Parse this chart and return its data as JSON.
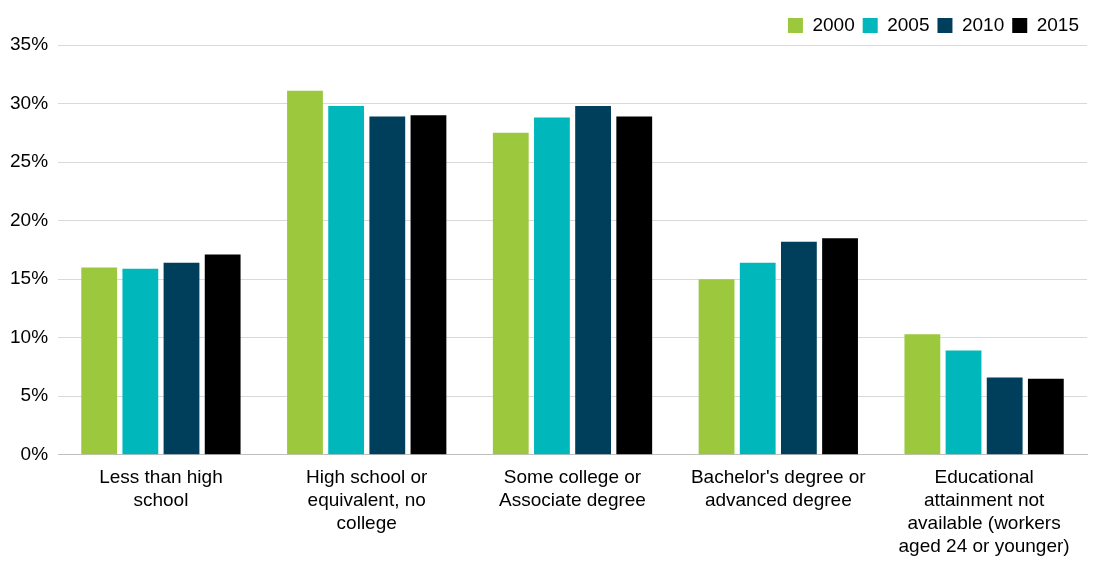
{
  "chart_data": {
    "type": "bar",
    "categories": [
      "Less than high school",
      "High school or equivalent, no college",
      "Some college or Associate degree",
      "Bachelor's degree or advanced degree",
      "Educational attainment not available (workers aged 24 or younger)"
    ],
    "series": [
      {
        "name": "2000",
        "color": "#9bc83c",
        "values": [
          16.0,
          31.1,
          27.5,
          15.0,
          10.3
        ]
      },
      {
        "name": "2005",
        "color": "#00b8bc",
        "values": [
          15.9,
          29.8,
          28.8,
          16.4,
          8.9
        ]
      },
      {
        "name": "2010",
        "color": "#003f5c",
        "values": [
          16.4,
          28.9,
          29.8,
          18.2,
          6.6
        ]
      },
      {
        "name": "2015",
        "color": "#000000",
        "values": [
          17.1,
          29.0,
          28.9,
          18.5,
          6.5
        ]
      }
    ],
    "ylim": [
      0,
      35
    ],
    "yticks": [
      {
        "value": 0,
        "label": "0%"
      },
      {
        "value": 5,
        "label": "5%"
      },
      {
        "value": 10,
        "label": "10%"
      },
      {
        "value": 15,
        "label": "15%"
      },
      {
        "value": 20,
        "label": "20%"
      },
      {
        "value": 25,
        "label": "25%"
      },
      {
        "value": 30,
        "label": "30%"
      },
      {
        "value": 35,
        "label": "35%"
      }
    ],
    "grid": "y",
    "legend": "top right"
  }
}
